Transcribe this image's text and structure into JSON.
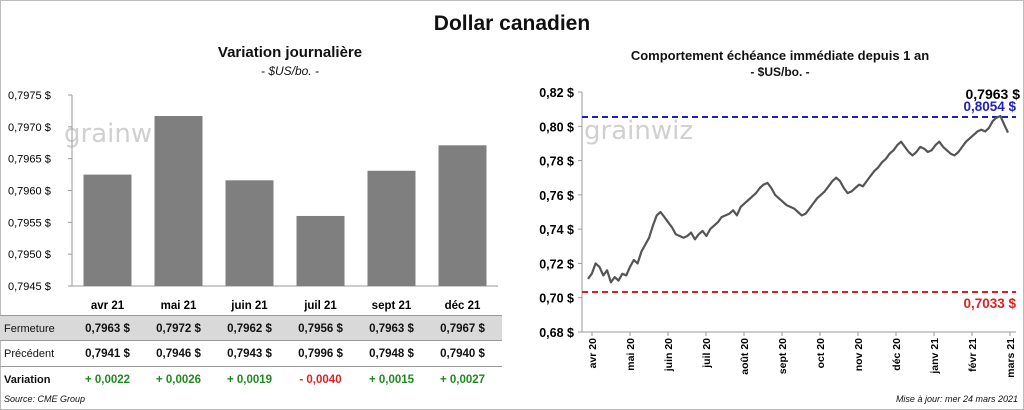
{
  "title": "Dollar canadien",
  "left_title": "Variation  journalière",
  "left_subtitle": "- $US/bo. -",
  "right_title": "Comportement échéance immédiate depuis 1 an",
  "right_subtitle": "- $US/bo. -",
  "watermark": "grainwiz",
  "source": "Source: CME Group",
  "updated": "Mise à jour: mer 24 mars 2021",
  "colors": {
    "bar": "#7f7f7f",
    "line": "#555555",
    "high": "#1f1fbf",
    "low": "#e02020",
    "pos": "#1f8a1f",
    "neg": "#e02020"
  },
  "table": {
    "row_labels": {
      "fermeture": "Fermeture",
      "precedent": "Précédent",
      "variation": "Variation"
    },
    "fermeture": [
      "0,7963  $",
      "0,7972  $",
      "0,7962  $",
      "0,7956  $",
      "0,7963  $",
      "0,7967  $"
    ],
    "precedent": [
      "0,7941  $",
      "0,7946  $",
      "0,7943  $",
      "0,7996  $",
      "0,7948  $",
      "0,7940  $"
    ],
    "variation": [
      "+ 0,0022",
      "+ 0,0026",
      "+ 0,0019",
      "- 0,0040",
      "+ 0,0015",
      "+ 0,0027"
    ],
    "variation_sign": [
      "pos",
      "pos",
      "pos",
      "neg",
      "pos",
      "pos"
    ]
  },
  "chart_data": [
    {
      "type": "bar",
      "title": "Variation  journalière",
      "subtitle": "- $US/bo. -",
      "categories": [
        "avr 21",
        "mai 21",
        "juin 21",
        "juil 21",
        "sept 21",
        "déc 21"
      ],
      "values": [
        0.79625,
        0.79717,
        0.79616,
        0.7956,
        0.79631,
        0.79671
      ],
      "ylim": [
        0.7945,
        0.7975
      ],
      "yticks": [
        0.7945,
        0.795,
        0.7955,
        0.796,
        0.7965,
        0.797,
        0.7975
      ],
      "ytick_labels": [
        "0,7945 $",
        "0,7950 $",
        "0,7955 $",
        "0,7960 $",
        "0,7965 $",
        "0,7970 $",
        "0,7975 $"
      ],
      "grid": false
    },
    {
      "type": "line",
      "title": "Comportement échéance immédiate depuis 1 an",
      "subtitle": "- $US/bo. -",
      "ylim": [
        0.68,
        0.82
      ],
      "yticks": [
        0.68,
        0.7,
        0.72,
        0.74,
        0.76,
        0.78,
        0.8,
        0.82
      ],
      "ytick_labels": [
        "0,68 $",
        "0,70 $",
        "0,72 $",
        "0,74 $",
        "0,76 $",
        "0,78 $",
        "0,80 $",
        "0,82 $"
      ],
      "x_labels": [
        "avr 20",
        "mai 20",
        "juin 20",
        "juil 20",
        "août 20",
        "sept 20",
        "oct 20",
        "nov 20",
        "déc 20",
        "janv 21",
        "févr 21",
        "mars 21"
      ],
      "grid": false,
      "series": [
        {
          "values": [
            0.711,
            0.714,
            0.72,
            0.718,
            0.713,
            0.716,
            0.709,
            0.712,
            0.71,
            0.714,
            0.713,
            0.718,
            0.722,
            0.72,
            0.727,
            0.731,
            0.735,
            0.742,
            0.748,
            0.75,
            0.747,
            0.744,
            0.741,
            0.737,
            0.736,
            0.735,
            0.736,
            0.738,
            0.734,
            0.737,
            0.739,
            0.736,
            0.74,
            0.742,
            0.744,
            0.747,
            0.748,
            0.749,
            0.751,
            0.748,
            0.753,
            0.755,
            0.757,
            0.759,
            0.761,
            0.764,
            0.766,
            0.767,
            0.764,
            0.76,
            0.758,
            0.756,
            0.754,
            0.753,
            0.752,
            0.75,
            0.748,
            0.749,
            0.752,
            0.755,
            0.758,
            0.76,
            0.762,
            0.765,
            0.768,
            0.77,
            0.768,
            0.764,
            0.761,
            0.762,
            0.764,
            0.766,
            0.765,
            0.768,
            0.771,
            0.774,
            0.776,
            0.779,
            0.781,
            0.784,
            0.786,
            0.789,
            0.791,
            0.788,
            0.785,
            0.783,
            0.785,
            0.788,
            0.787,
            0.785,
            0.786,
            0.789,
            0.791,
            0.788,
            0.786,
            0.784,
            0.783,
            0.785,
            0.788,
            0.791,
            0.793,
            0.795,
            0.797,
            0.798,
            0.797,
            0.799,
            0.803,
            0.805,
            0.806,
            0.801,
            0.7963
          ]
        }
      ],
      "hlines": [
        {
          "value": 0.8054,
          "label": "0,8054 $",
          "color": "#1f1fbf"
        },
        {
          "value": 0.7033,
          "label": "0,7033 $",
          "color": "#e02020"
        }
      ],
      "last_value_label": "0,7963 $"
    }
  ]
}
